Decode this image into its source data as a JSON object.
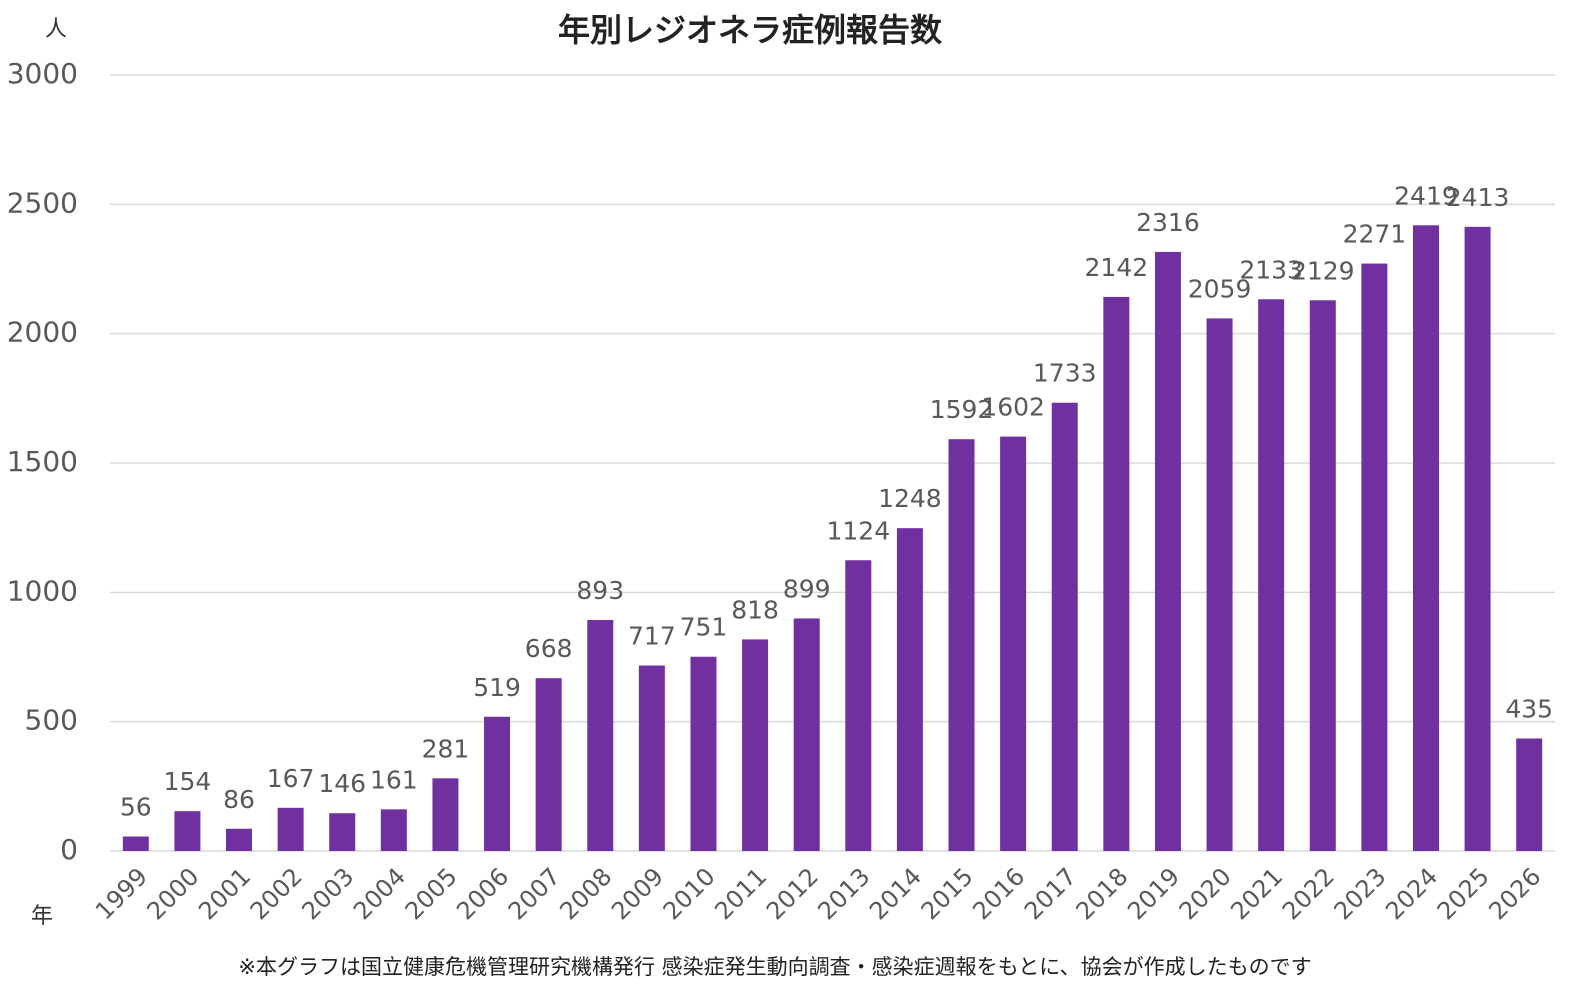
{
  "chart_data": {
    "type": "bar",
    "title": "年別レジオネラ症例報告数",
    "y_unit": "人",
    "x_unit": "年",
    "note": "※本グラフは国立健康危機管理研究機構発行 感染症発生動向調査・感染症週報をもとに、協会が作成したものです",
    "categories": [
      "1999",
      "2000",
      "2001",
      "2002",
      "2003",
      "2004",
      "2005",
      "2006",
      "2007",
      "2008",
      "2009",
      "2010",
      "2011",
      "2012",
      "2013",
      "2014",
      "2015",
      "2016",
      "2017",
      "2018",
      "2019",
      "2020",
      "2021",
      "2022",
      "2023",
      "2024",
      "2025",
      "2026"
    ],
    "values": [
      56,
      154,
      86,
      167,
      146,
      161,
      281,
      519,
      668,
      893,
      717,
      751,
      818,
      899,
      1124,
      1248,
      1592,
      1602,
      1733,
      2142,
      2316,
      2059,
      2133,
      2129,
      2271,
      2419,
      2413,
      435
    ],
    "color": "#7030a0",
    "ylim": [
      0,
      3000
    ],
    "yticks": [
      0,
      500,
      1000,
      1500,
      2000,
      2500,
      3000
    ],
    "grid": true
  }
}
